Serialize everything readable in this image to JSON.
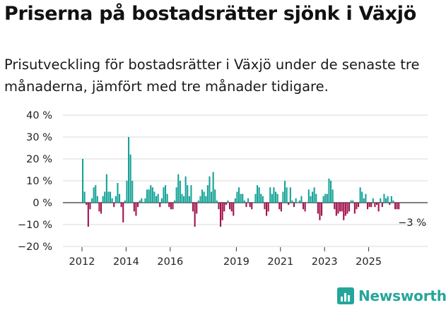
{
  "title": "Priserna på bostadsrätter sjönk i Växjö",
  "subtitle": "Prisutveckling för bostadsrätter i Växjö under de senaste tre månaderna, jämfört med tre månader tidigare.",
  "brand": "Newsworthy",
  "colors": {
    "positive": "#17a398",
    "negative": "#a3144f",
    "brand": "#26a69a"
  },
  "chart_data": {
    "type": "bar",
    "ylim": [
      -20,
      40
    ],
    "yticks": [
      40,
      30,
      20,
      10,
      0,
      -10,
      -20
    ],
    "ytick_labels": [
      "40 %",
      "30 %",
      "20 %",
      "10 %",
      "0 %",
      "−10 %",
      "−20 %"
    ],
    "xticks": [
      2012,
      2014,
      2016,
      2019,
      2021,
      2023,
      2025
    ],
    "xtick_labels": [
      "2012",
      "2014",
      "2016",
      "2019",
      "2021",
      "2023",
      "2025"
    ],
    "x_start_year": 2012,
    "annotation": "−3 %",
    "values": [
      20,
      5,
      -1,
      -11,
      -3,
      2,
      7,
      8,
      3,
      -4,
      -5,
      3,
      5,
      13,
      5,
      5,
      2,
      -2,
      3,
      9,
      4,
      -2,
      -9,
      1,
      10,
      30,
      22,
      10,
      -4,
      -6,
      -2,
      1,
      2,
      0,
      2,
      6,
      6,
      8,
      7,
      5,
      3,
      4,
      -2,
      2,
      7,
      8,
      4,
      -2,
      -3,
      -3,
      1,
      7,
      13,
      10,
      4,
      3,
      12,
      8,
      3,
      8,
      -4,
      -11,
      -5,
      1,
      3,
      6,
      5,
      3,
      8,
      12,
      5,
      14,
      6,
      1,
      -3,
      -11,
      -8,
      -4,
      -1,
      1,
      -3,
      -4,
      -6,
      2,
      5,
      7,
      4,
      4,
      1,
      -2,
      2,
      -2,
      -3,
      0,
      4,
      8,
      7,
      4,
      3,
      -3,
      -6,
      -4,
      7,
      4,
      7,
      5,
      4,
      -3,
      -4,
      5,
      10,
      7,
      -1,
      7,
      1,
      -2,
      2,
      0,
      1,
      3,
      -3,
      -4,
      0,
      6,
      3,
      5,
      7,
      4,
      -5,
      -8,
      -6,
      3,
      4,
      4,
      11,
      10,
      6,
      -3,
      -6,
      -5,
      -4,
      -4,
      -8,
      -6,
      -5,
      -4,
      1,
      1,
      -5,
      -3,
      -2,
      7,
      5,
      2,
      4,
      -3,
      -2,
      -2,
      2,
      -2,
      -1,
      -4,
      2,
      -2,
      4,
      2,
      3,
      -1,
      3,
      1,
      -3,
      -3,
      -3
    ]
  }
}
